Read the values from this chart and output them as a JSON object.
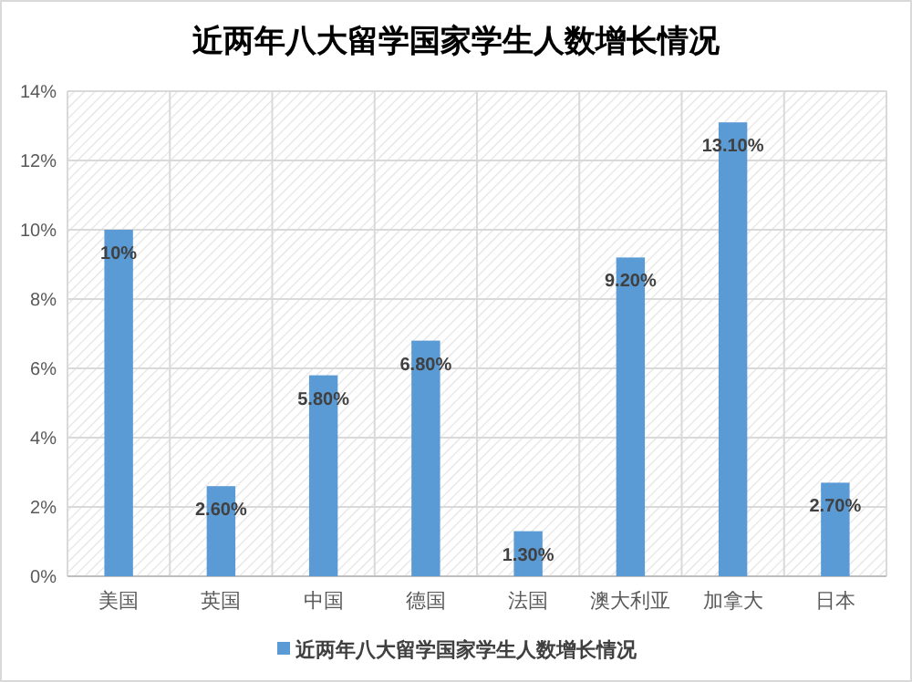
{
  "chart_data": {
    "type": "bar",
    "title": "近两年八大留学国家学生人数增长情况",
    "categories": [
      "美国",
      "英国",
      "中国",
      "德国",
      "法国",
      "澳大利亚",
      "加拿大",
      "日本"
    ],
    "series": [
      {
        "name": "近两年八大留学国家学生人数增长情况",
        "color": "#5b9bd5",
        "values": [
          10,
          2.6,
          5.8,
          6.8,
          1.3,
          9.2,
          13.1,
          2.7
        ],
        "value_labels": [
          "10%",
          "2.60%",
          "5.80%",
          "6.80%",
          "1.30%",
          "9.20%",
          "13.10%",
          "2.70%"
        ]
      }
    ],
    "ylim": [
      0,
      14
    ],
    "yticks": [
      {
        "value": 0,
        "label": "0%"
      },
      {
        "value": 2,
        "label": "2%"
      },
      {
        "value": 4,
        "label": "4%"
      },
      {
        "value": 6,
        "label": "6%"
      },
      {
        "value": 8,
        "label": "8%"
      },
      {
        "value": 10,
        "label": "10%"
      },
      {
        "value": 12,
        "label": "12%"
      },
      {
        "value": 14,
        "label": "14%"
      }
    ],
    "grid": true,
    "legend": "bottom"
  }
}
